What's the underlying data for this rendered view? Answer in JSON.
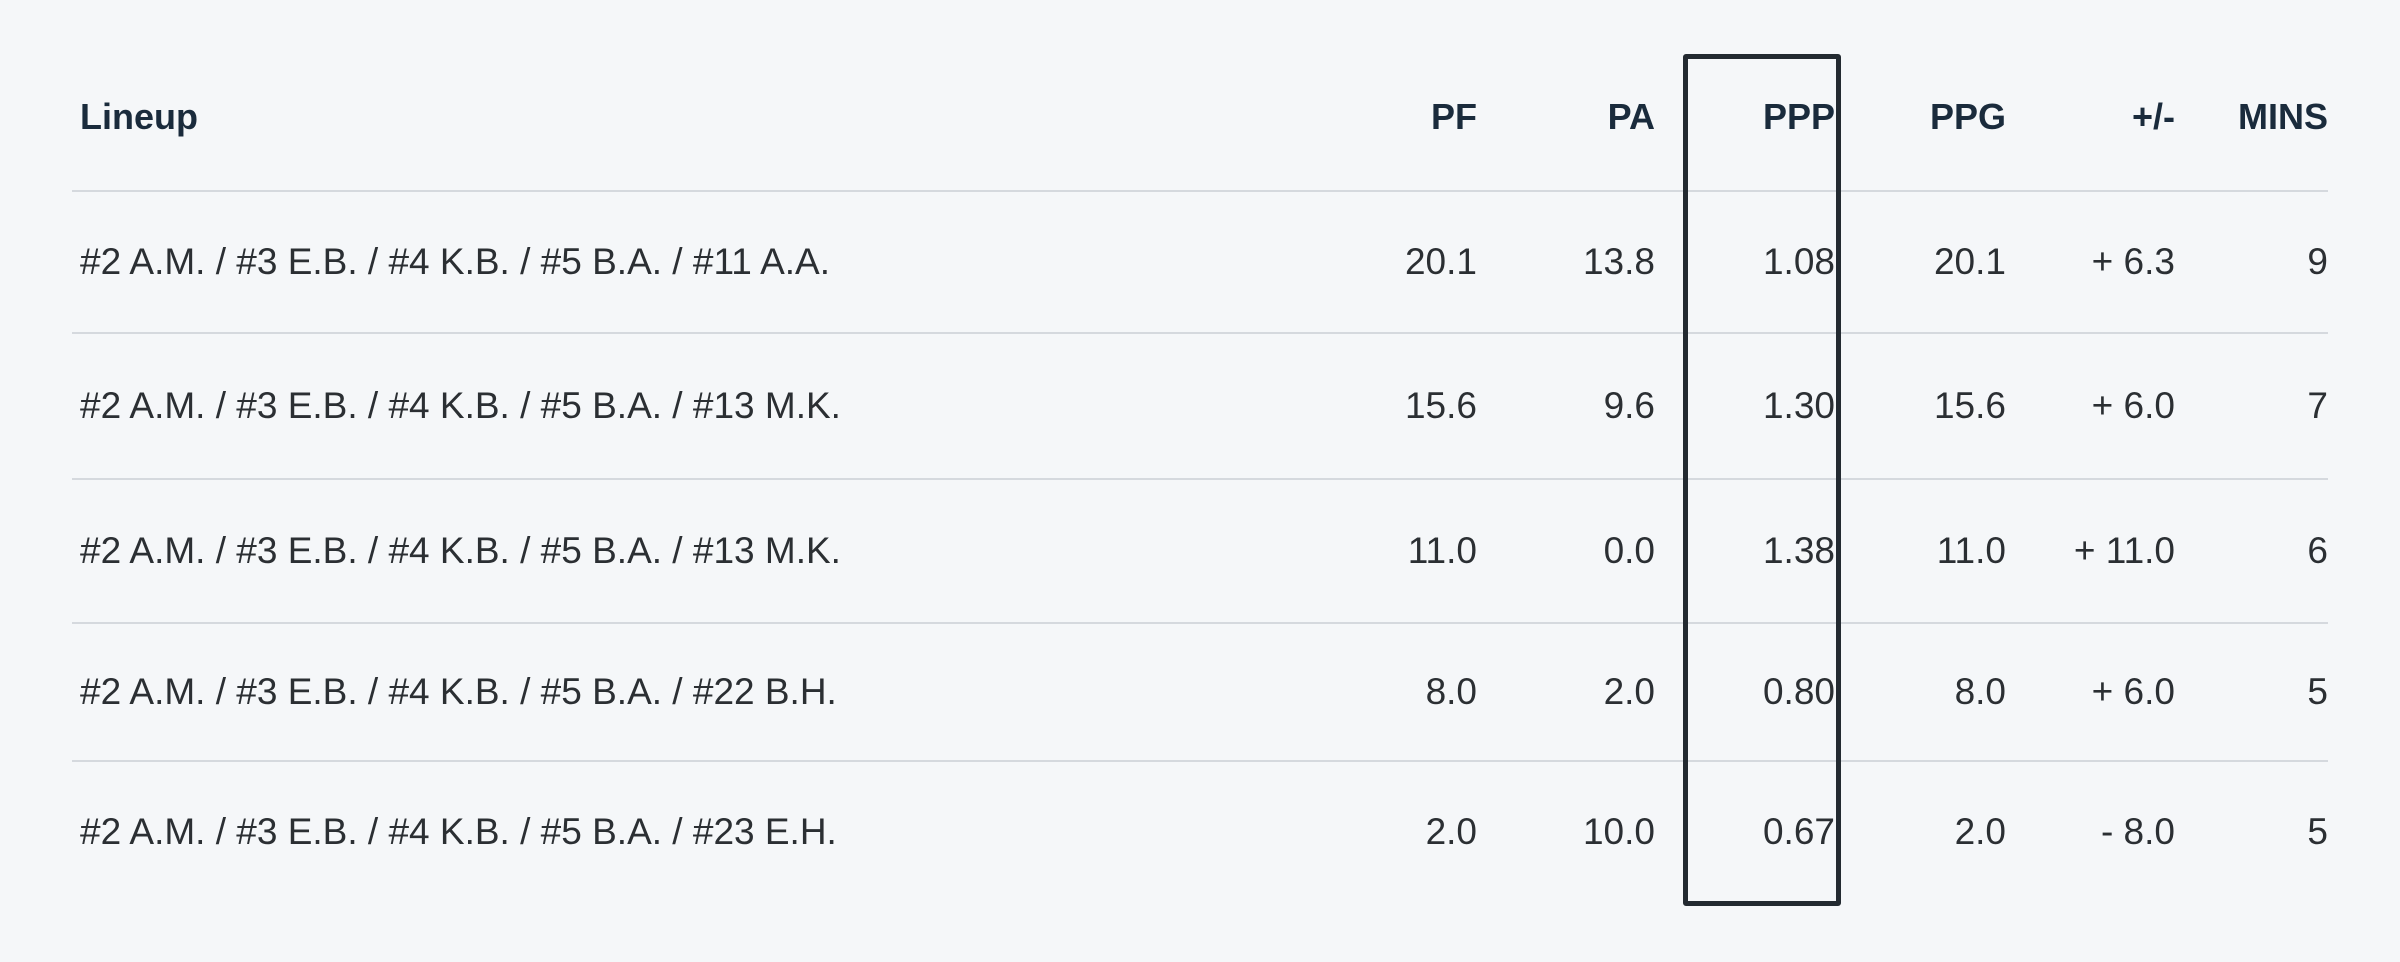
{
  "table": {
    "headers": {
      "lineup": "Lineup",
      "pf": "PF",
      "pa": "PA",
      "ppp": "PPP",
      "ppg": "PPG",
      "plus_minus": "+/-",
      "mins": "MINS"
    },
    "rows": [
      {
        "lineup": "#2 A.M. / #3 E.B. / #4 K.B. / #5 B.A. / #11 A.A.",
        "pf": "20.1",
        "pa": "13.8",
        "ppp": "1.08",
        "ppg": "20.1",
        "plus_minus": "+ 6.3",
        "mins": "9"
      },
      {
        "lineup": "#2 A.M. / #3 E.B. / #4 K.B. / #5 B.A. / #13 M.K.",
        "pf": "15.6",
        "pa": "9.6",
        "ppp": "1.30",
        "ppg": "15.6",
        "plus_minus": "+ 6.0",
        "mins": "7"
      },
      {
        "lineup": "#2 A.M. / #3 E.B. / #4 K.B. / #5 B.A. / #13 M.K.",
        "pf": "11.0",
        "pa": "0.0",
        "ppp": "1.38",
        "ppg": "11.0",
        "plus_minus": "+ 11.0",
        "mins": "6"
      },
      {
        "lineup": "#2 A.M. / #3 E.B. / #4 K.B. / #5 B.A. / #22 B.H.",
        "pf": "8.0",
        "pa": "2.0",
        "ppp": "0.80",
        "ppg": "8.0",
        "plus_minus": "+ 6.0",
        "mins": "5"
      },
      {
        "lineup": "#2 A.M. / #3 E.B. / #4 K.B. / #5 B.A. / #23 E.H.",
        "pf": "2.0",
        "pa": "10.0",
        "ppp": "0.67",
        "ppg": "2.0",
        "plus_minus": "- 8.0",
        "mins": "5"
      }
    ]
  },
  "colors": {
    "background": "#f5f7f9",
    "header_text": "#1a2b3c",
    "body_text": "#2b2f33",
    "divider": "#d5d9de",
    "highlight_border": "#232a31"
  }
}
